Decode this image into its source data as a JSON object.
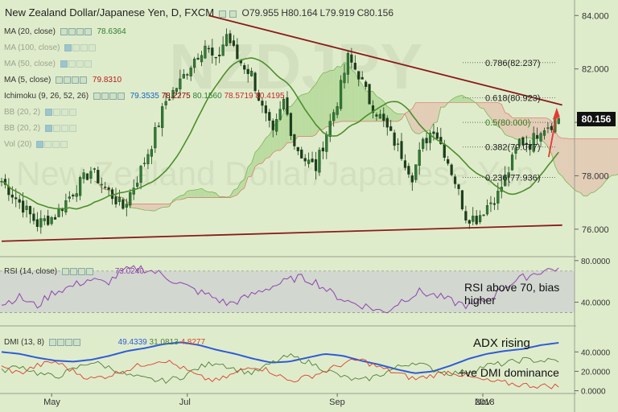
{
  "header": {
    "symbol_title": "New Zealand Dollar/Japanese Yen, D, FXCM",
    "ohlc": {
      "open": "O79.955",
      "high": "H80.164",
      "low": "L79.919",
      "close": "C80.156"
    }
  },
  "indicator_labels": [
    {
      "id": "ma20",
      "label": "MA (20, close)",
      "value": "78.6364",
      "value_color": "#2e7d32"
    },
    {
      "id": "ma100",
      "label": "MA (100, close)",
      "value": "",
      "value_color": "#888888"
    },
    {
      "id": "ma50",
      "label": "MA (50, close)",
      "value": "",
      "value_color": "#888888"
    },
    {
      "id": "ma5",
      "label": "MA (5, close)",
      "value": "79.8310",
      "value_color": "#b71c1c"
    },
    {
      "id": "ichimoku",
      "label": "Ichimoku (9, 26, 52, 26)",
      "values": [
        "79.3535",
        "78.2275",
        "80.1560",
        "78.5719",
        "80.4195"
      ],
      "value_colors": [
        "#1565c0",
        "#8b0000",
        "#2e7d32",
        "#c62828",
        "#c62828"
      ]
    },
    {
      "id": "bb1",
      "label": "BB (20, 2)",
      "value": "",
      "value_color": "#888888"
    },
    {
      "id": "bb2",
      "label": "BB (20, 2)",
      "value": "",
      "value_color": "#888888"
    },
    {
      "id": "vol",
      "label": "Vol (20)",
      "value": "",
      "value_color": "#888888"
    }
  ],
  "price_tag": {
    "value": "80.156"
  },
  "annotations": {
    "rsi_note": "RSI above 70, bias higher",
    "adx_note": "ADX rising",
    "dmi_note": "+ve DMI dominance"
  },
  "colors": {
    "background": "#dfeccb",
    "candle_up": "#2e7d32",
    "candle_down": "#1b3d1b",
    "trendline": "#8b1a1a",
    "ma20": "#4c8f2b",
    "kumo_bull": "#b5d99a",
    "kumo_bear": "#e3c8b4",
    "rsi_line": "#8e44ad",
    "adx_line": "#2f5bd8",
    "plus_di": "#4f7f3a",
    "minus_di": "#d9402b",
    "arrow": "#e53935"
  },
  "chart_data": [
    {
      "type": "candlestick",
      "panel": "price",
      "title": "New Zealand Dollar/Japanese Yen, D, FXCM",
      "x_tick_labels": [
        "May",
        "Jul",
        "Sep",
        "Nov",
        "2018"
      ],
      "y_tick_labels": [
        "76.000",
        "78.000",
        "80.000",
        "82.000",
        "84.000"
      ],
      "ylim": [
        75.0,
        84.4
      ],
      "last_close": 80.156,
      "ohlc_last": {
        "open": 79.955,
        "high": 80.164,
        "low": 79.919,
        "close": 80.156
      },
      "close_path": [
        [
          0,
          77.8
        ],
        [
          5,
          77.0
        ],
        [
          10,
          76.2
        ],
        [
          15,
          76.5
        ],
        [
          20,
          77.4
        ],
        [
          25,
          78.2
        ],
        [
          30,
          77.4
        ],
        [
          34,
          76.8
        ],
        [
          38,
          77.9
        ],
        [
          42,
          79.2
        ],
        [
          46,
          80.8
        ],
        [
          50,
          81.5
        ],
        [
          54,
          82.4
        ],
        [
          57,
          82.9
        ],
        [
          60,
          82.2
        ],
        [
          63,
          83.3
        ],
        [
          66,
          82.4
        ],
        [
          70,
          81.8
        ],
        [
          73,
          80.5
        ],
        [
          76,
          79.5
        ],
        [
          79,
          80.8
        ],
        [
          82,
          79.2
        ],
        [
          85,
          78.6
        ],
        [
          88,
          78.3
        ],
        [
          91,
          79.6
        ],
        [
          94,
          80.8
        ],
        [
          97,
          82.4
        ],
        [
          100,
          81.8
        ],
        [
          103,
          80.8
        ],
        [
          106,
          80.2
        ],
        [
          109,
          79.5
        ],
        [
          112,
          78.8
        ],
        [
          115,
          78.0
        ],
        [
          118,
          79.2
        ],
        [
          121,
          79.8
        ],
        [
          124,
          78.9
        ],
        [
          127,
          77.8
        ],
        [
          130,
          76.5
        ],
        [
          133,
          76.4
        ],
        [
          136,
          76.9
        ],
        [
          139,
          77.3
        ],
        [
          142,
          78.2
        ],
        [
          145,
          79.3
        ],
        [
          148,
          79.2
        ],
        [
          151,
          79.8
        ],
        [
          154,
          79.95
        ],
        [
          156,
          80.156
        ]
      ],
      "series": [
        {
          "name": "MA (20, close)",
          "last": 78.6364
        },
        {
          "name": "MA (5, close)",
          "last": 79.831
        },
        {
          "name": "Ichimoku (9, 26, 52, 26)",
          "values": [
            79.3535,
            78.2275,
            80.156,
            78.5719,
            80.4195
          ]
        }
      ],
      "fibonacci_levels": [
        {
          "label": "0.786(82.237)",
          "ratio": 0.786,
          "price": 82.237
        },
        {
          "label": "0.618(80.923)",
          "ratio": 0.618,
          "price": 80.923
        },
        {
          "label": "0.5(80.000)",
          "ratio": 0.5,
          "price": 80.0
        },
        {
          "label": "0.382(79.077)",
          "ratio": 0.382,
          "price": 79.077
        },
        {
          "label": "0.236(77.936)",
          "ratio": 0.236,
          "price": 77.936
        }
      ],
      "trendlines": [
        {
          "name": "resistance",
          "from": [
            58,
            84.0
          ],
          "to": [
            157,
            80.65
          ]
        },
        {
          "name": "support",
          "from": [
            0,
            75.55
          ],
          "to": [
            157,
            76.15
          ]
        }
      ]
    },
    {
      "type": "line",
      "panel": "rsi",
      "title": "RSI (14, close)",
      "value_label": "73.0240",
      "last": 73.024,
      "y_tick_labels": [
        "40.0000",
        "80.0000"
      ],
      "ylim": [
        18,
        83
      ],
      "band": [
        30,
        70
      ],
      "values": [
        38,
        45,
        36,
        50,
        55,
        62,
        58,
        70,
        73,
        68,
        60,
        52,
        46,
        38,
        44,
        52,
        58,
        64,
        60,
        48,
        40,
        36,
        30,
        42,
        50,
        46,
        40,
        36,
        44,
        56,
        64,
        70,
        73
      ]
    },
    {
      "type": "line",
      "panel": "dmi",
      "title": "DMI (13, 8)",
      "value_labels": [
        "49.4339",
        "31.0813",
        "4.8277"
      ],
      "y_tick_labels": [
        "0.0000",
        "20.0000",
        "40.0000"
      ],
      "ylim": [
        -2,
        66
      ],
      "series": [
        {
          "name": "ADX",
          "values": [
            40,
            38,
            34,
            31,
            30,
            32,
            36,
            41,
            44,
            48,
            50,
            47,
            42,
            38,
            33,
            29,
            30,
            34,
            38,
            36,
            31,
            27,
            22,
            18,
            20,
            26,
            33,
            38,
            41,
            43,
            47,
            49.4339
          ]
        },
        {
          "name": "+DI",
          "values": [
            20,
            26,
            18,
            14,
            22,
            30,
            24,
            16,
            12,
            10,
            14,
            24,
            30,
            22,
            18,
            28,
            36,
            30,
            22,
            14,
            10,
            16,
            24,
            30,
            22,
            18,
            20,
            26,
            28,
            32,
            31,
            31.0813
          ]
        },
        {
          "name": "-DI",
          "values": [
            24,
            18,
            26,
            30,
            20,
            12,
            16,
            22,
            28,
            32,
            24,
            14,
            10,
            18,
            26,
            20,
            10,
            14,
            20,
            28,
            32,
            24,
            18,
            12,
            16,
            20,
            14,
            10,
            8,
            6,
            5,
            4.8277
          ]
        }
      ]
    }
  ]
}
